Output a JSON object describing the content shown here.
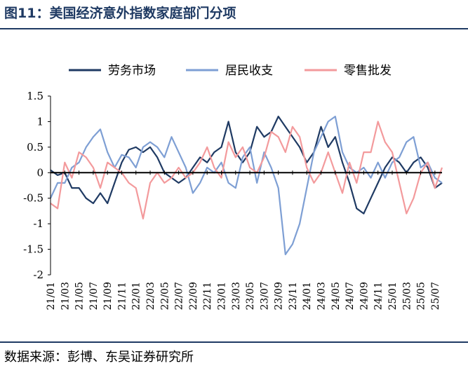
{
  "figure": {
    "title": "图11：美国经济意外指数家庭部门分项",
    "source": "数据来源：彭博、东吴证券研究所"
  },
  "chart_data": {
    "type": "line",
    "ylim": [
      -2,
      1.5
    ],
    "yticks": [
      1.5,
      1,
      0.5,
      0,
      -0.5,
      -1,
      -1.5,
      -2
    ],
    "ytick_labels": [
      "1.5",
      "1",
      "0.5",
      "0",
      "-0.5",
      "-1",
      "-1.5",
      "-2"
    ],
    "x_start": "2021-01",
    "x_end": "2025-08",
    "xtick_labels": [
      "21/01",
      "21/03",
      "21/05",
      "21/07",
      "21/09",
      "21/11",
      "22/01",
      "22/03",
      "22/05",
      "22/07",
      "22/09",
      "22/11",
      "23/01",
      "23/03",
      "23/05",
      "23/07",
      "23/09",
      "23/11",
      "24/01",
      "24/03",
      "24/05",
      "24/07",
      "24/09",
      "24/11",
      "25/01",
      "25/03",
      "25/05",
      "25/07"
    ],
    "legend_position": "top",
    "grid": false,
    "series": [
      {
        "name": "劳务市场",
        "color": "#1f3a63",
        "points": [
          [
            "2021-01",
            0.05
          ],
          [
            "2021-02",
            -0.05
          ],
          [
            "2021-03",
            0.0
          ],
          [
            "2021-04",
            -0.3
          ],
          [
            "2021-05",
            -0.3
          ],
          [
            "2021-06",
            -0.5
          ],
          [
            "2021-07",
            -0.6
          ],
          [
            "2021-08",
            -0.4
          ],
          [
            "2021-09",
            -0.6
          ],
          [
            "2021-10",
            -0.2
          ],
          [
            "2021-11",
            0.2
          ],
          [
            "2021-12",
            0.45
          ],
          [
            "2022-01",
            0.5
          ],
          [
            "2022-02",
            0.4
          ],
          [
            "2022-03",
            0.5
          ],
          [
            "2022-04",
            0.3
          ],
          [
            "2022-05",
            0.0
          ],
          [
            "2022-06",
            -0.1
          ],
          [
            "2022-07",
            -0.2
          ],
          [
            "2022-08",
            -0.1
          ],
          [
            "2022-09",
            0.1
          ],
          [
            "2022-10",
            0.3
          ],
          [
            "2022-11",
            0.2
          ],
          [
            "2022-12",
            0.4
          ],
          [
            "2023-01",
            0.5
          ],
          [
            "2023-02",
            1.0
          ],
          [
            "2023-03",
            0.4
          ],
          [
            "2023-04",
            0.2
          ],
          [
            "2023-05",
            0.4
          ],
          [
            "2023-06",
            0.9
          ],
          [
            "2023-07",
            0.7
          ],
          [
            "2023-08",
            0.8
          ],
          [
            "2023-09",
            1.1
          ],
          [
            "2023-10",
            0.9
          ],
          [
            "2023-11",
            0.7
          ],
          [
            "2023-12",
            0.5
          ],
          [
            "2024-01",
            0.2
          ],
          [
            "2024-02",
            0.4
          ],
          [
            "2024-03",
            0.9
          ],
          [
            "2024-04",
            0.5
          ],
          [
            "2024-05",
            0.7
          ],
          [
            "2024-06",
            0.2
          ],
          [
            "2024-07",
            -0.2
          ],
          [
            "2024-08",
            -0.7
          ],
          [
            "2024-09",
            -0.8
          ],
          [
            "2024-10",
            -0.5
          ],
          [
            "2024-11",
            -0.2
          ],
          [
            "2024-12",
            0.1
          ],
          [
            "2025-01",
            0.3
          ],
          [
            "2025-02",
            0.2
          ],
          [
            "2025-03",
            0.0
          ],
          [
            "2025-04",
            0.2
          ],
          [
            "2025-05",
            0.3
          ],
          [
            "2025-06",
            0.1
          ],
          [
            "2025-07",
            -0.3
          ],
          [
            "2025-08",
            -0.2
          ]
        ]
      },
      {
        "name": "居民收支",
        "color": "#7e9fd4",
        "points": [
          [
            "2021-01",
            -0.5
          ],
          [
            "2021-02",
            -0.2
          ],
          [
            "2021-03",
            -0.2
          ],
          [
            "2021-04",
            0.1
          ],
          [
            "2021-05",
            0.2
          ],
          [
            "2021-06",
            0.5
          ],
          [
            "2021-07",
            0.7
          ],
          [
            "2021-08",
            0.85
          ],
          [
            "2021-09",
            0.4
          ],
          [
            "2021-10",
            0.1
          ],
          [
            "2021-11",
            0.35
          ],
          [
            "2021-12",
            0.3
          ],
          [
            "2022-01",
            0.1
          ],
          [
            "2022-02",
            0.5
          ],
          [
            "2022-03",
            0.6
          ],
          [
            "2022-04",
            0.5
          ],
          [
            "2022-05",
            0.3
          ],
          [
            "2022-06",
            0.7
          ],
          [
            "2022-07",
            0.4
          ],
          [
            "2022-08",
            0.1
          ],
          [
            "2022-09",
            -0.4
          ],
          [
            "2022-10",
            -0.2
          ],
          [
            "2022-11",
            0.1
          ],
          [
            "2022-12",
            0.0
          ],
          [
            "2023-01",
            0.2
          ],
          [
            "2023-02",
            -0.2
          ],
          [
            "2023-03",
            -0.3
          ],
          [
            "2023-04",
            0.3
          ],
          [
            "2023-05",
            0.5
          ],
          [
            "2023-06",
            -0.2
          ],
          [
            "2023-07",
            0.4
          ],
          [
            "2023-08",
            0.1
          ],
          [
            "2023-09",
            -0.3
          ],
          [
            "2023-10",
            -1.6
          ],
          [
            "2023-11",
            -1.4
          ],
          [
            "2023-12",
            -1.0
          ],
          [
            "2024-01",
            -0.3
          ],
          [
            "2024-02",
            0.4
          ],
          [
            "2024-03",
            0.7
          ],
          [
            "2024-04",
            1.0
          ],
          [
            "2024-05",
            1.1
          ],
          [
            "2024-06",
            0.4
          ],
          [
            "2024-07",
            0.1
          ],
          [
            "2024-08",
            0.0
          ],
          [
            "2024-09",
            0.1
          ],
          [
            "2024-10",
            -0.1
          ],
          [
            "2024-11",
            0.2
          ],
          [
            "2024-12",
            -0.1
          ],
          [
            "2025-01",
            0.2
          ],
          [
            "2025-02",
            0.3
          ],
          [
            "2025-03",
            0.6
          ],
          [
            "2025-04",
            0.7
          ],
          [
            "2025-05",
            0.1
          ],
          [
            "2025-06",
            0.2
          ],
          [
            "2025-07",
            -0.1
          ],
          [
            "2025-08",
            -0.2
          ]
        ]
      },
      {
        "name": "零售批发",
        "color": "#f39a9c",
        "points": [
          [
            "2021-01",
            -0.6
          ],
          [
            "2021-02",
            -0.7
          ],
          [
            "2021-03",
            0.2
          ],
          [
            "2021-04",
            -0.1
          ],
          [
            "2021-05",
            0.4
          ],
          [
            "2021-06",
            0.3
          ],
          [
            "2021-07",
            0.1
          ],
          [
            "2021-08",
            -0.3
          ],
          [
            "2021-09",
            0.2
          ],
          [
            "2021-10",
            0.1
          ],
          [
            "2021-11",
            0.0
          ],
          [
            "2021-12",
            -0.2
          ],
          [
            "2022-01",
            -0.3
          ],
          [
            "2022-02",
            -0.9
          ],
          [
            "2022-03",
            -0.2
          ],
          [
            "2022-04",
            0.0
          ],
          [
            "2022-05",
            -0.2
          ],
          [
            "2022-06",
            -0.1
          ],
          [
            "2022-07",
            0.1
          ],
          [
            "2022-08",
            -0.1
          ],
          [
            "2022-09",
            0.0
          ],
          [
            "2022-10",
            0.2
          ],
          [
            "2022-11",
            0.5
          ],
          [
            "2022-12",
            0.1
          ],
          [
            "2023-01",
            -0.1
          ],
          [
            "2023-02",
            0.6
          ],
          [
            "2023-03",
            0.3
          ],
          [
            "2023-04",
            0.5
          ],
          [
            "2023-05",
            0.1
          ],
          [
            "2023-06",
            0.0
          ],
          [
            "2023-07",
            0.3
          ],
          [
            "2023-08",
            0.8
          ],
          [
            "2023-09",
            0.7
          ],
          [
            "2023-10",
            0.4
          ],
          [
            "2023-11",
            0.9
          ],
          [
            "2023-12",
            0.7
          ],
          [
            "2024-01",
            0.1
          ],
          [
            "2024-02",
            -0.2
          ],
          [
            "2024-03",
            0.0
          ],
          [
            "2024-04",
            0.4
          ],
          [
            "2024-05",
            0.0
          ],
          [
            "2024-06",
            -0.4
          ],
          [
            "2024-07",
            0.2
          ],
          [
            "2024-08",
            -0.2
          ],
          [
            "2024-09",
            0.4
          ],
          [
            "2024-10",
            0.4
          ],
          [
            "2024-11",
            1.0
          ],
          [
            "2024-12",
            0.6
          ],
          [
            "2025-01",
            0.4
          ],
          [
            "2025-02",
            -0.2
          ],
          [
            "2025-03",
            -0.8
          ],
          [
            "2025-04",
            -0.5
          ],
          [
            "2025-05",
            0.0
          ],
          [
            "2025-06",
            0.2
          ],
          [
            "2025-07",
            -0.3
          ],
          [
            "2025-08",
            0.1
          ]
        ]
      }
    ]
  }
}
